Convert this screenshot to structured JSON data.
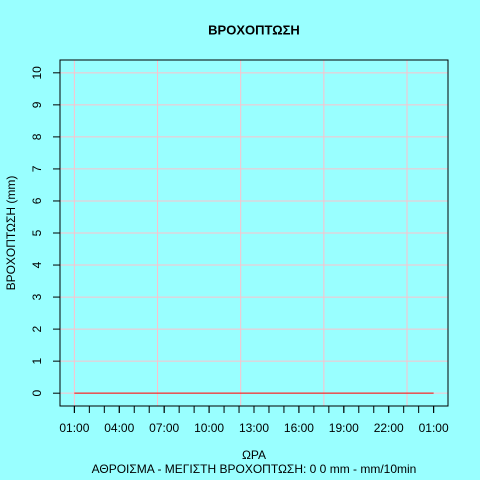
{
  "chart_data": {
    "type": "line",
    "title": "ΒΡΟΧΟΠΤΩΣΗ",
    "xlabel": "ΩΡΑ",
    "ylabel": "ΒΡΟΧΟΠΤΩΣΗ (mm)",
    "subtitle": "ΑΘΡΟΙΣΜΑ - ΜΕΓΙΣΤΗ ΒΡΟΧΟΠΤΩΣΗ: 0 0 mm - mm/10min",
    "background": "#99ffff",
    "grid_color": "#ffc0cb",
    "color": "#ff0000",
    "x": [
      0,
      1,
      2,
      3,
      4,
      5,
      6,
      7,
      8,
      9,
      10,
      11,
      12,
      13,
      14,
      15,
      16,
      17,
      18,
      19,
      20,
      21,
      22,
      23,
      24
    ],
    "values": [
      0,
      0,
      0,
      0,
      0,
      0,
      0,
      0,
      0,
      0,
      0,
      0,
      0,
      0,
      0,
      0,
      0,
      0,
      0,
      0,
      0,
      0,
      0,
      0,
      0
    ],
    "xlim": [
      -0.96,
      24.96
    ],
    "xticks": [
      {
        "value": 0,
        "label": "01:00"
      },
      {
        "value": 3,
        "label": "04:00"
      },
      {
        "value": 6,
        "label": "07:00"
      },
      {
        "value": 9,
        "label": "10:00"
      },
      {
        "value": 12,
        "label": "13:00"
      },
      {
        "value": 15,
        "label": "16:00"
      },
      {
        "value": 18,
        "label": "19:00"
      },
      {
        "value": 21,
        "label": "22:00"
      },
      {
        "value": 24,
        "label": "01:00"
      }
    ],
    "xminor_ticks": [
      0,
      1,
      2,
      3,
      4,
      5,
      6,
      7,
      8,
      9,
      10,
      11,
      12,
      13,
      14,
      15,
      16,
      17,
      18,
      19,
      20,
      21,
      22,
      23,
      24
    ],
    "xgrid": [
      0,
      5.556,
      11.111,
      16.667,
      22.222
    ],
    "ylim": [
      -0.4,
      10.4
    ],
    "yticks": [
      0,
      1,
      2,
      3,
      4,
      5,
      6,
      7,
      8,
      9,
      10
    ],
    "grid": true
  }
}
